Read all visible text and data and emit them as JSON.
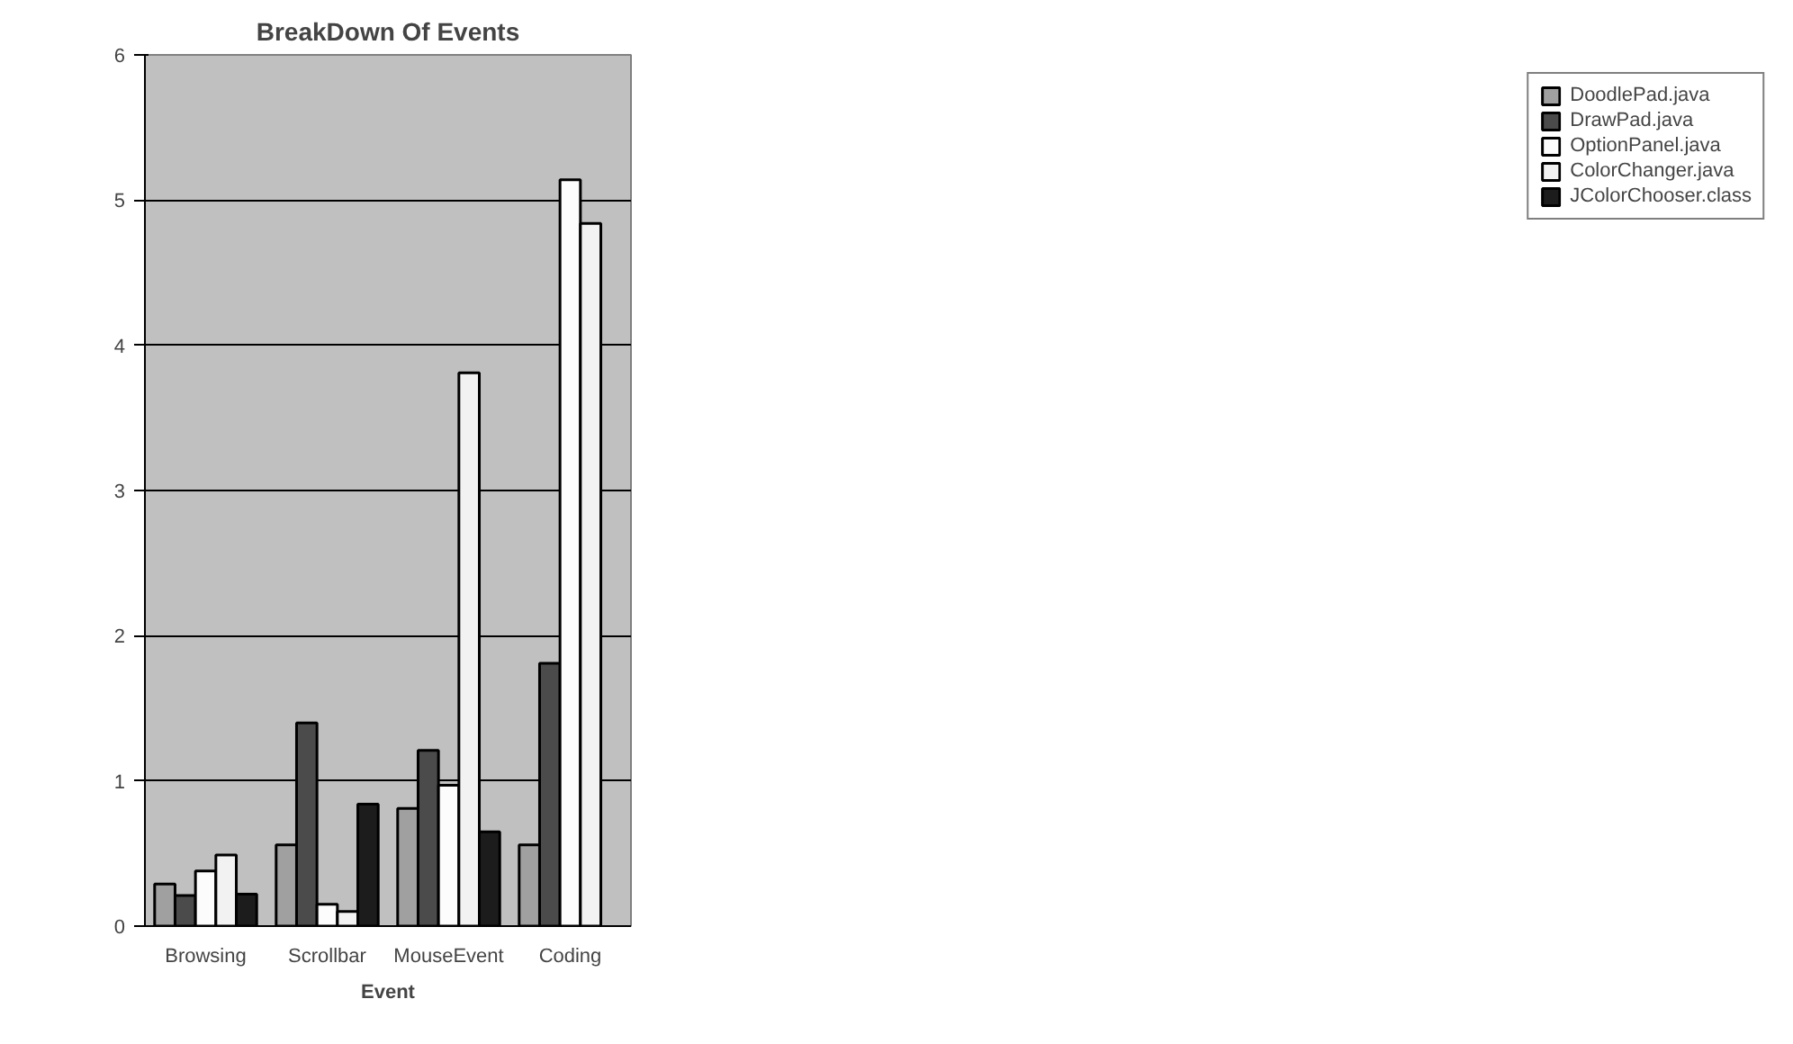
{
  "chart_data": {
    "type": "bar",
    "title": "BreakDown Of Events",
    "xlabel": "Event",
    "categories": [
      "Browsing",
      "Scrollbar",
      "MouseEvent",
      "Coding"
    ],
    "series": [
      {
        "name": "DoodlePad.java",
        "color": "#a0a0a0",
        "values": [
          0.29,
          0.56,
          0.81,
          0.56
        ]
      },
      {
        "name": "DrawPad.java",
        "color": "#4b4b4b",
        "values": [
          0.21,
          1.4,
          1.21,
          1.81
        ]
      },
      {
        "name": "OptionPanel.java",
        "color": "#fcfcfc",
        "values": [
          0.38,
          0.15,
          0.97,
          5.14
        ]
      },
      {
        "name": "ColorChanger.java",
        "color": "#f2f2f2",
        "values": [
          0.49,
          0.1,
          3.81,
          4.84
        ]
      },
      {
        "name": "JColorChooser.class",
        "color": "#1c1c1c",
        "values": [
          0.22,
          0.84,
          0.65,
          null
        ]
      }
    ],
    "ylim": [
      0,
      6
    ],
    "yticks": [
      0,
      1,
      2,
      3,
      4,
      5,
      6
    ],
    "grid": "y",
    "legend": "right"
  }
}
